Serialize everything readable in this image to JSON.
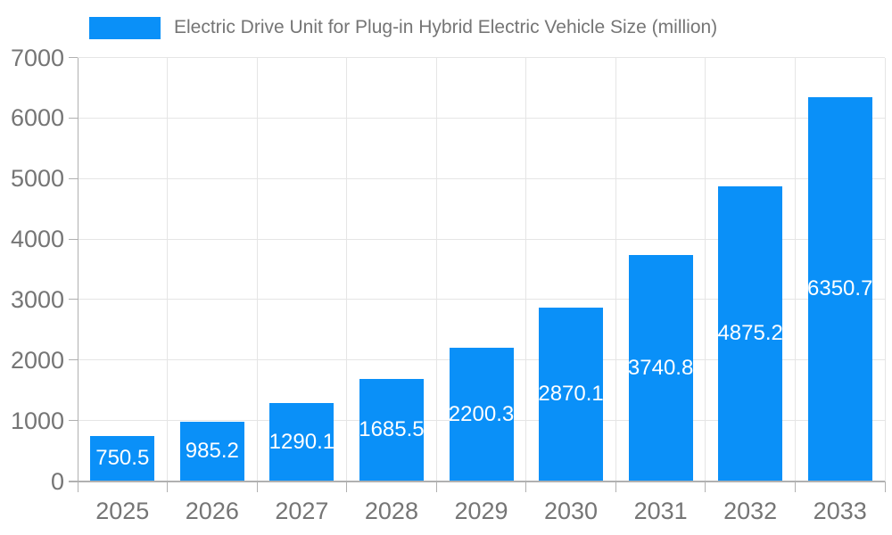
{
  "legend": {
    "label": "Electric Drive Unit for Plug-in Hybrid Electric Vehicle Size (million)"
  },
  "colors": {
    "bar": "#0a90f8",
    "grid": "#e5e5e5",
    "axis": "#b0b0b0",
    "tick_text": "#757575",
    "value_text": "#ffffff"
  },
  "chart_data": {
    "type": "bar",
    "title": "Electric Drive Unit for Plug-in Hybrid Electric Vehicle Size (million)",
    "series": [
      {
        "name": "Electric Drive Unit for Plug-in Hybrid Electric Vehicle Size (million)",
        "values": [
          750.5,
          985.2,
          1290.1,
          1685.5,
          2200.3,
          2870.1,
          3740.8,
          4875.2,
          6350.7
        ]
      }
    ],
    "categories": [
      "2025",
      "2026",
      "2027",
      "2028",
      "2029",
      "2030",
      "2031",
      "2032",
      "2033"
    ],
    "value_labels": [
      "750.5",
      "985.2",
      "1290.1",
      "1685.5",
      "2200.3",
      "2870.1",
      "3740.8",
      "4875.2",
      "6350.7"
    ],
    "xlabel": "",
    "ylabel": "",
    "ylim": [
      0,
      7000
    ],
    "yticks": [
      0,
      1000,
      2000,
      3000,
      4000,
      5000,
      6000,
      7000
    ],
    "grid": true,
    "legend_position": "top",
    "value_label_position": "inside-center"
  }
}
